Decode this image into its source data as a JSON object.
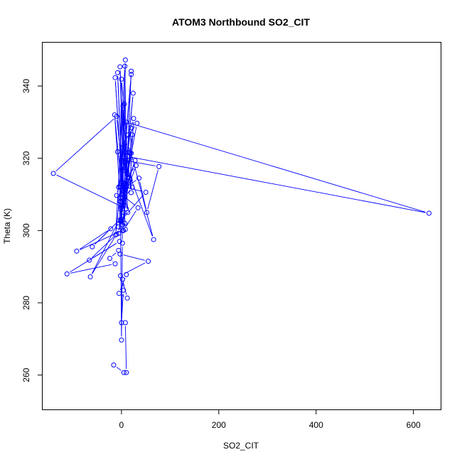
{
  "chart_data": {
    "type": "line",
    "title": "ATOM3 Northbound SO2_CIT",
    "xlabel": "SO2_CIT",
    "ylabel": "Theta (K)",
    "xlim": [
      -162,
      656
    ],
    "ylim": [
      250.5,
      352
    ],
    "xticks": [
      0,
      200,
      400,
      600
    ],
    "yticks": [
      260,
      280,
      300,
      320,
      340
    ],
    "grid": false,
    "legend": "none",
    "color": "#0000ff",
    "series": [
      {
        "marker": "open-circle",
        "points": [
          [
            -16,
            262.8
          ],
          [
            5,
            260.7
          ],
          [
            10,
            260.7
          ],
          [
            8,
            274.5
          ],
          [
            0,
            274.5
          ],
          [
            4,
            283.5
          ],
          [
            2,
            286.5
          ],
          [
            12,
            281.3
          ],
          [
            -5,
            282.6
          ],
          [
            10,
            287.8
          ],
          [
            -2,
            287.5
          ],
          [
            55,
            291.5
          ],
          [
            -3,
            293.5
          ],
          [
            -6,
            294.5
          ],
          [
            -24,
            292.3
          ],
          [
            -13,
            290.8
          ],
          [
            -112,
            288
          ],
          [
            -4,
            297
          ],
          [
            -66,
            291.8
          ],
          [
            -10,
            299
          ],
          [
            -64,
            287.2
          ],
          [
            -5,
            302.8
          ],
          [
            -60,
            295.5
          ],
          [
            -22,
            300.5
          ],
          [
            -92,
            294.3
          ],
          [
            2,
            300
          ],
          [
            -14,
            332
          ],
          [
            5,
            305
          ],
          [
            -8,
            343.7
          ],
          [
            3,
            310
          ],
          [
            -13,
            342.3
          ],
          [
            7,
            302
          ],
          [
            -3,
            345.3
          ],
          [
            10,
            306
          ],
          [
            -140,
            315.8
          ],
          [
            -10,
            331.6
          ],
          [
            2,
            316.5
          ],
          [
            8,
            300.3
          ],
          [
            -10,
            309.7
          ],
          [
            12,
            322.5
          ],
          [
            0,
            341.9
          ],
          [
            -3,
            312
          ],
          [
            6,
            335
          ],
          [
            -2,
            309
          ],
          [
            20,
            343.2
          ],
          [
            -6,
            301
          ],
          [
            16,
            314.5
          ],
          [
            2,
            301.5
          ],
          [
            22,
            326.5
          ],
          [
            -1,
            303
          ],
          [
            24,
            338
          ],
          [
            -1,
            302.8
          ],
          [
            18,
            321.5
          ],
          [
            -2,
            302.6
          ],
          [
            50,
            310.6
          ],
          [
            -3,
            312.3
          ],
          [
            30,
            318
          ],
          [
            -2,
            306
          ],
          [
            32,
            329.7
          ],
          [
            -8,
            321.8
          ],
          [
            13,
            305
          ],
          [
            3,
            334.5
          ],
          [
            4,
            320
          ],
          [
            66,
            297.5
          ],
          [
            20,
            321.4
          ],
          [
            -6,
            299.2
          ],
          [
            19,
            328.4
          ],
          [
            20,
            310.5
          ],
          [
            5,
            329.6
          ],
          [
            8,
            347.2
          ],
          [
            5,
            320.4
          ],
          [
            -12,
            298.8
          ],
          [
            7,
            345.5
          ],
          [
            10,
            313
          ],
          [
            20,
            344.1
          ],
          [
            14,
            326.5
          ],
          [
            25,
            331
          ],
          [
            18,
            314
          ],
          [
            3,
            319.5
          ],
          [
            77,
            317.7
          ],
          [
            52,
            305
          ],
          [
            36,
            314.5
          ],
          [
            10,
            312
          ],
          [
            28,
            319.4
          ],
          [
            0,
            308
          ],
          [
            22,
            312
          ],
          [
            5,
            319
          ],
          [
            -6,
            312
          ],
          [
            12,
            320.5
          ],
          [
            632,
            304.8
          ],
          [
            10,
            330
          ],
          [
            4,
            300
          ],
          [
            34,
            306.3
          ],
          [
            0,
            310
          ],
          [
            2,
            296.5
          ],
          [
            0,
            269.7
          ],
          [
            -2,
            306.5
          ],
          [
            -3,
            308
          ]
        ]
      }
    ]
  }
}
